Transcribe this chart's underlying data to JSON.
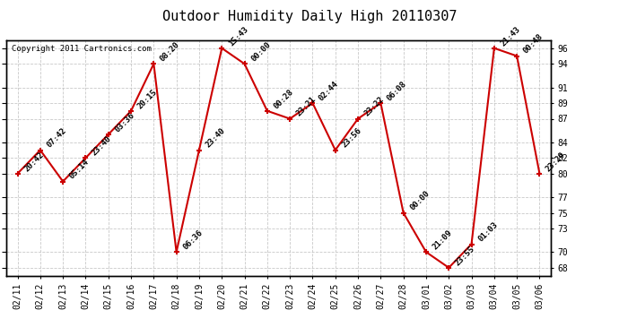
{
  "title": "Outdoor Humidity Daily High 20110307",
  "copyright": "Copyright 2011 Cartronics.com",
  "x_labels": [
    "02/11",
    "02/12",
    "02/13",
    "02/14",
    "02/15",
    "02/16",
    "02/17",
    "02/18",
    "02/19",
    "02/20",
    "02/21",
    "02/22",
    "02/23",
    "02/24",
    "02/25",
    "02/26",
    "02/27",
    "02/28",
    "03/01",
    "03/02",
    "03/03",
    "03/04",
    "03/05",
    "03/06"
  ],
  "y_values": [
    80,
    83,
    79,
    82,
    85,
    88,
    94,
    70,
    83,
    96,
    94,
    88,
    87,
    89,
    83,
    87,
    89,
    75,
    70,
    68,
    71,
    96,
    95,
    80
  ],
  "point_labels": [
    "20:42",
    "07:42",
    "05:14",
    "23:40",
    "03:36",
    "20:15",
    "08:20",
    "06:36",
    "23:40",
    "15:43",
    "00:00",
    "00:28",
    "23:21",
    "02:44",
    "23:56",
    "23:22",
    "06:08",
    "00:00",
    "21:09",
    "23:55",
    "01:03",
    "21:43",
    "00:48",
    "23:29"
  ],
  "line_color": "#cc0000",
  "marker_color": "#cc0000",
  "bg_color": "#ffffff",
  "plot_bg_color": "#ffffff",
  "grid_color": "#bbbbbb",
  "title_fontsize": 11,
  "tick_fontsize": 7,
  "label_fontsize": 6.5,
  "ylim_min": 67,
  "ylim_max": 97,
  "yticks": [
    68,
    70,
    73,
    75,
    77,
    80,
    82,
    84,
    87,
    89,
    91,
    94,
    96
  ]
}
